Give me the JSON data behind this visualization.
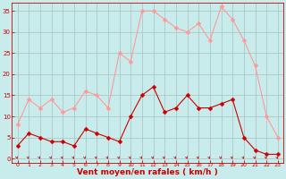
{
  "hours": [
    0,
    1,
    2,
    3,
    4,
    5,
    6,
    7,
    8,
    9,
    10,
    11,
    12,
    13,
    14,
    15,
    16,
    17,
    18,
    19,
    20,
    21,
    22,
    23
  ],
  "vent_moyen": [
    3,
    6,
    5,
    4,
    4,
    3,
    7,
    6,
    5,
    4,
    10,
    15,
    17,
    11,
    12,
    15,
    12,
    12,
    13,
    14,
    5,
    2,
    1,
    1
  ],
  "rafales": [
    8,
    14,
    12,
    14,
    11,
    12,
    16,
    15,
    12,
    25,
    23,
    35,
    35,
    33,
    31,
    30,
    32,
    28,
    36,
    33,
    28,
    22,
    10,
    5
  ],
  "bg_color": "#c8ecec",
  "grid_color": "#b0c8c8",
  "line_moyen_color": "#cc0000",
  "line_rafales_color": "#ff9999",
  "xlabel": "Vent moyen/en rafales ( km/h )",
  "xlabel_color": "#cc0000",
  "yticks": [
    0,
    5,
    10,
    15,
    20,
    25,
    30,
    35
  ],
  "ylim": [
    -1,
    37
  ],
  "xlim": [
    -0.5,
    23.5
  ],
  "tick_color": "#cc0000",
  "markersize": 2.5
}
